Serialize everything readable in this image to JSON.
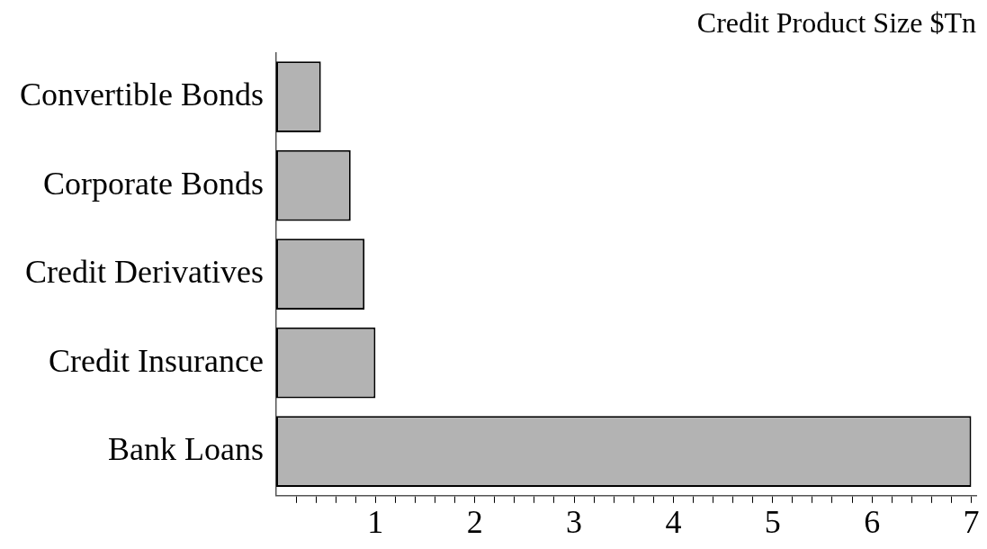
{
  "chart_data": {
    "type": "bar",
    "orientation": "horizontal",
    "title": "Credit Product Size $Tn",
    "categories": [
      "Convertible Bonds",
      "Corporate Bonds",
      "Credit Derivatives",
      "Credit Insurance",
      "Bank Loans"
    ],
    "values": [
      0.45,
      0.75,
      0.89,
      1.0,
      7.0
    ],
    "color": "#b3b3b3",
    "xlim": [
      0,
      7.05
    ],
    "xticks": [
      {
        "value": 0.2,
        "label": null
      },
      {
        "value": 0.4,
        "label": null
      },
      {
        "value": 0.6,
        "label": null
      },
      {
        "value": 0.8,
        "label": null
      },
      1,
      {
        "value": 1.2,
        "label": null
      },
      {
        "value": 1.4,
        "label": null
      },
      {
        "value": 1.6,
        "label": null
      },
      {
        "value": 1.8,
        "label": null
      },
      2,
      {
        "value": 2.2,
        "label": null
      },
      {
        "value": 2.4,
        "label": null
      },
      {
        "value": 2.6,
        "label": null
      },
      {
        "value": 2.8,
        "label": null
      },
      3,
      {
        "value": 3.2,
        "label": null
      },
      {
        "value": 3.4,
        "label": null
      },
      {
        "value": 3.6,
        "label": null
      },
      {
        "value": 3.8,
        "label": null
      },
      4,
      {
        "value": 4.2,
        "label": null
      },
      {
        "value": 4.4,
        "label": null
      },
      {
        "value": 4.6,
        "label": null
      },
      {
        "value": 4.8,
        "label": null
      },
      5,
      {
        "value": 5.2,
        "label": null
      },
      {
        "value": 5.4,
        "label": null
      },
      {
        "value": 5.6,
        "label": null
      },
      {
        "value": 5.8,
        "label": null
      },
      6,
      {
        "value": 6.2,
        "label": null
      },
      {
        "value": 6.4,
        "label": null
      },
      {
        "value": 6.6,
        "label": null
      },
      {
        "value": 6.8,
        "label": null
      },
      7
    ],
    "grid": false,
    "legend": false
  }
}
